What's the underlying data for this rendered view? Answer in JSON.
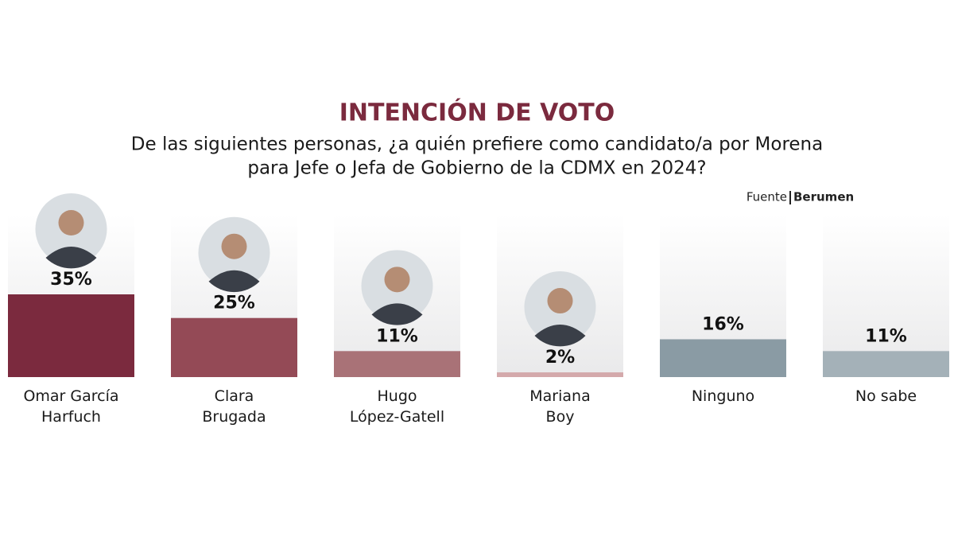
{
  "chart_data": {
    "type": "bar",
    "title": "INTENCIÓN DE VOTO",
    "subtitle": [
      "De las siguientes personas, ¿a quién prefiere como candidato/a por Morena",
      "para Jefe o Jefa de Gobierno de la CDMX en 2024?"
    ],
    "source_label": "Fuente",
    "source_name": "Berumen",
    "categories": [
      "Omar García\nHarfuch",
      "Clara\nBrugada",
      "Hugo\nLópez-Gatell",
      "Mariana\nBoy",
      "Ninguno",
      "No sabe"
    ],
    "values": [
      35,
      25,
      11,
      2,
      16,
      11
    ],
    "value_labels": [
      "35%",
      "25%",
      "11%",
      "2%",
      "16%",
      "11%"
    ],
    "colors": [
      "#7b2a3e",
      "#944a56",
      "#a97277",
      "#d4a9ab",
      "#8a9ba4",
      "#a4b1b8"
    ],
    "photos": [
      true,
      true,
      true,
      true,
      false,
      false
    ]
  }
}
